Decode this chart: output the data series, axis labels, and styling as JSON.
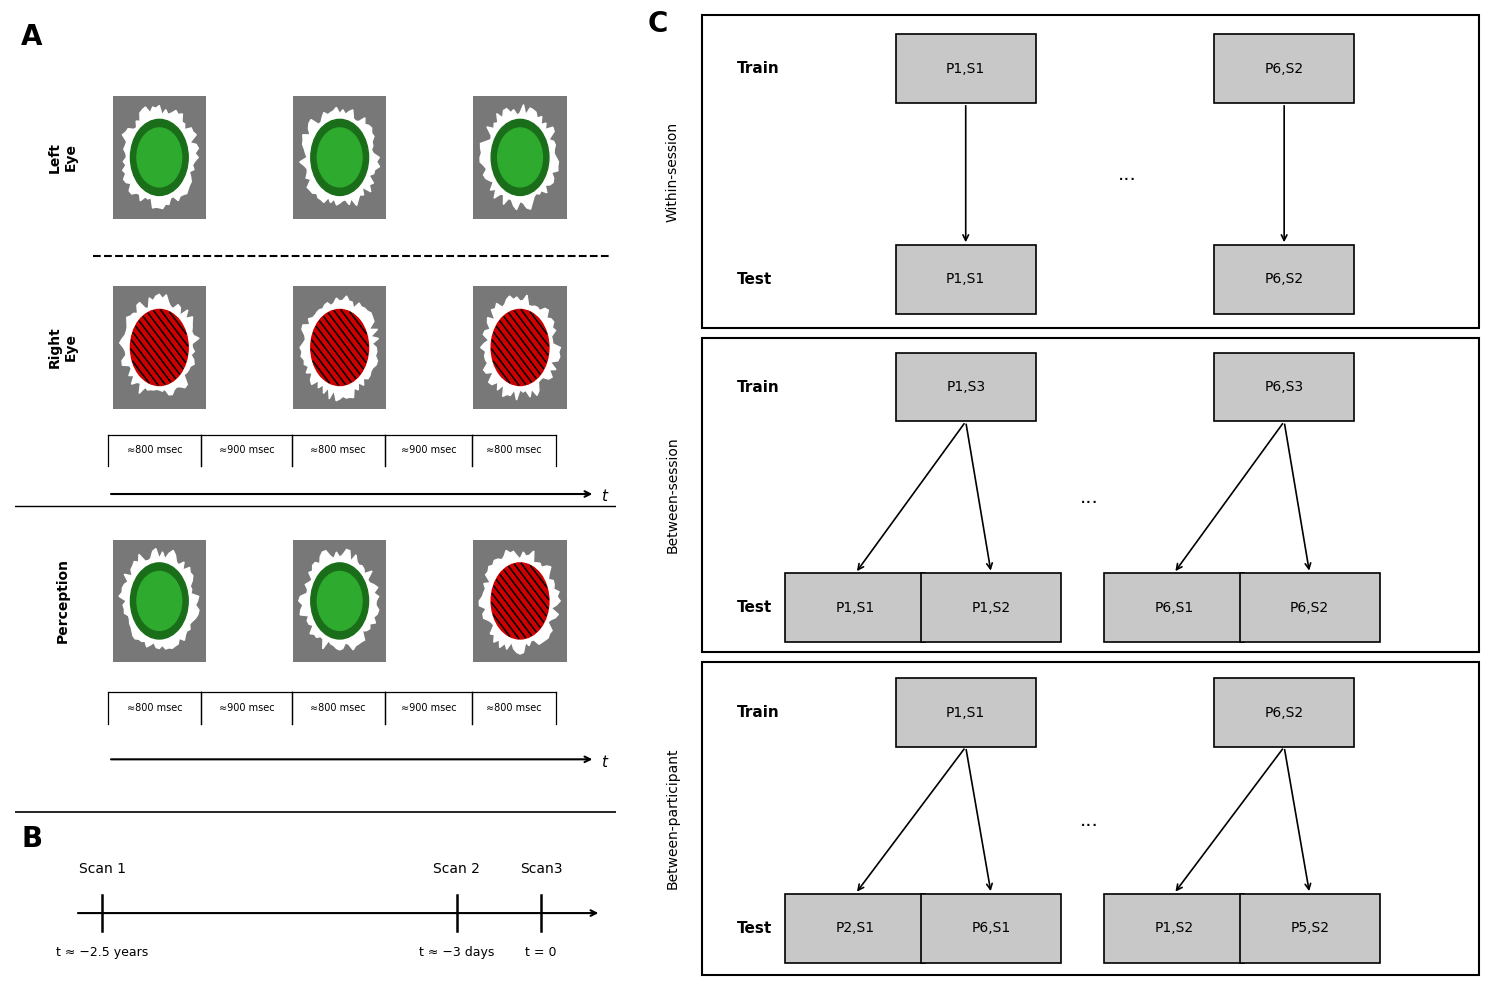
{
  "fig_width": 15.03,
  "fig_height": 9.9,
  "bg_color": "#ffffff",
  "panel_A_label": "A",
  "panel_B_label": "B",
  "panel_C_label": "C",
  "left_eye_label": "Left\nEye",
  "right_eye_label": "Right\nEye",
  "perception_label": "Perception",
  "timing_labels": [
    "≈800 msec",
    "≈900 msec",
    "≈800 msec",
    "≈900 msec",
    "≈800 msec"
  ],
  "scan_labels": [
    "Scan 1",
    "Scan 2",
    "Scan3"
  ],
  "scan_times": [
    "t ≈ −2.5 years",
    "t ≈ −3 days",
    "t = 0"
  ],
  "within_session_label": "Within-session",
  "between_session_label": "Between-session",
  "between_participant_label": "Between-participant",
  "train_label": "Train",
  "test_label": "Test",
  "within_train_boxes": [
    "P1,S1",
    "P6,S2"
  ],
  "within_test_boxes": [
    "P1,S1",
    "P6,S2"
  ],
  "between_session_train_boxes": [
    "P1,S3",
    "P6,S3"
  ],
  "between_session_test_boxes": [
    "P1,S1",
    "P1,S2",
    "P6,S1",
    "P6,S2"
  ],
  "between_participant_train_boxes": [
    "P1,S1",
    "P6,S2"
  ],
  "between_participant_test_boxes": [
    "P2,S1",
    "P6,S1",
    "P1,S2",
    "P5,S2"
  ],
  "between_participant_test_dots": [
    true,
    false,
    false,
    true
  ],
  "gray_box_color": "#c8c8c8",
  "stimulus_bg": "#787878",
  "green_dark": "#1a6e1a",
  "green_light": "#2eaa2e",
  "red_color": "#cc0000",
  "stripe_color": "#000000"
}
